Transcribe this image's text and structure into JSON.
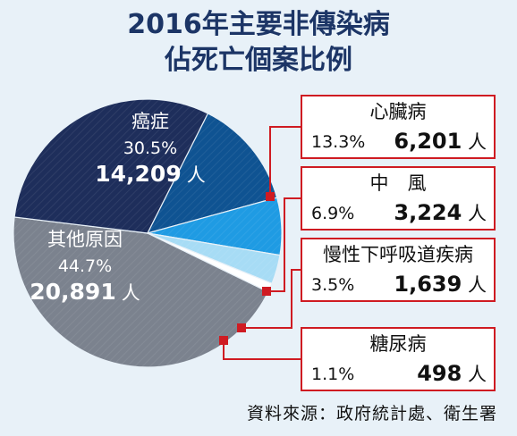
{
  "title": {
    "line1": "2016年主要非傳染病",
    "line2": "佔死亡個案比例"
  },
  "source": "資料來源：政府統計處、衛生署",
  "colors": {
    "background": "#e8f1f8",
    "title": "#1c3566",
    "connector": "#cf1b22"
  },
  "chart_data": {
    "type": "pie",
    "unit": "人",
    "slices": [
      {
        "name": "其他原因",
        "percent": "44.7%",
        "count": "20,891",
        "value": 44.7,
        "color": "#7b828e"
      },
      {
        "name": "癌症",
        "percent": "30.5%",
        "count": "14,209",
        "value": 30.5,
        "color": "#1e2e5b"
      },
      {
        "name": "心臟病",
        "percent": "13.3%",
        "count": "6,201",
        "value": 13.3,
        "color": "#0f5392"
      },
      {
        "name": "中　風",
        "percent": "6.9%",
        "count": "3,224",
        "value": 6.9,
        "color": "#1f9be3"
      },
      {
        "name": "慢性下呼吸道疾病",
        "percent": "3.5%",
        "count": "1,639",
        "value": 3.5,
        "color": "#a7dcf5"
      },
      {
        "name": "糖尿病",
        "percent": "1.1%",
        "count": "498",
        "value": 1.1,
        "color": "#ffffff"
      }
    ]
  }
}
